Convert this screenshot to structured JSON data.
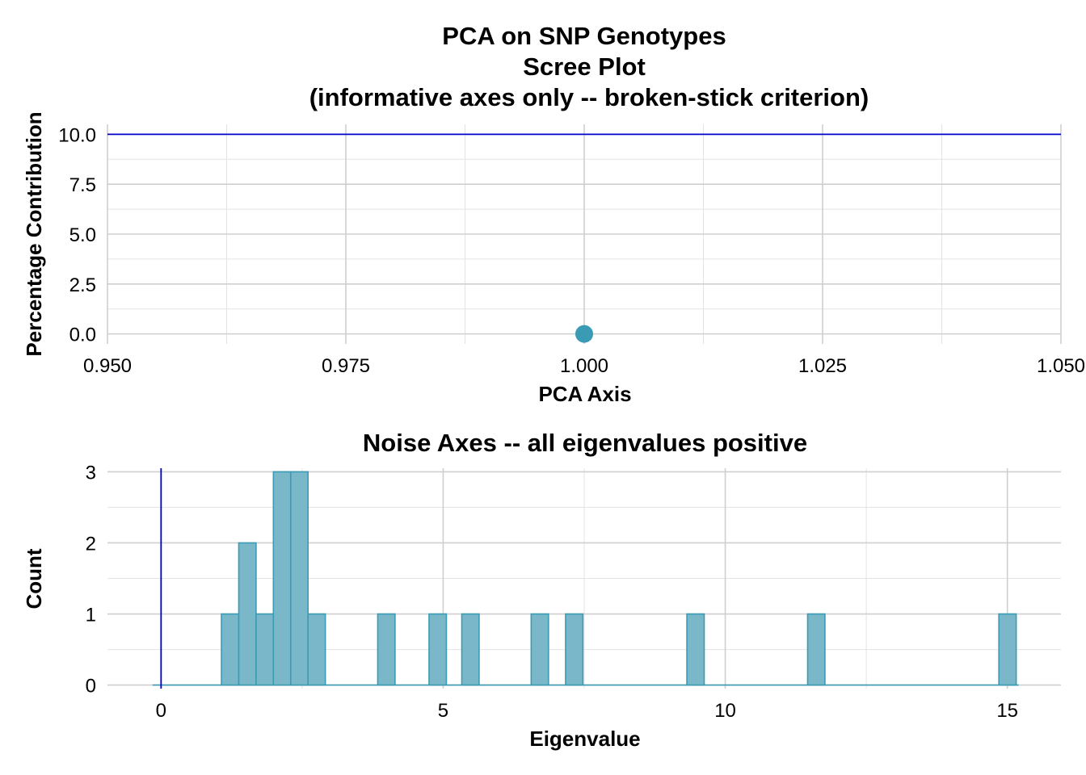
{
  "colors": {
    "point": "#3a9bb5",
    "bar_fill": "#7ab8c9",
    "bar_stroke": "#3a9bb5",
    "refline": "#0000cd"
  },
  "chart_data": [
    {
      "type": "scatter",
      "title_lines": [
        "PCA on SNP Genotypes",
        "Scree Plot",
        "(informative axes only -- broken-stick criterion)"
      ],
      "xlabel": "PCA Axis",
      "ylabel": "Percentage Contribution",
      "xlim": [
        0.95,
        1.05
      ],
      "ylim": [
        -0.5,
        10.5
      ],
      "xticks": [
        "0.950",
        "0.975",
        "1.000",
        "1.025",
        "1.050"
      ],
      "xtick_values": [
        0.95,
        0.975,
        1.0,
        1.025,
        1.05
      ],
      "yticks": [
        "0.0",
        "2.5",
        "5.0",
        "7.5",
        "10.0"
      ],
      "ytick_values": [
        0,
        2.5,
        5,
        7.5,
        10
      ],
      "points": [
        {
          "x": 1.0,
          "y": 0.0
        }
      ],
      "hline": 10.0
    },
    {
      "type": "bar",
      "subtype": "histogram",
      "title": "Noise Axes -- all eigenvalues positive",
      "xlabel": "Eigenvalue",
      "ylabel": "Count",
      "xlim": [
        -0.95,
        15.95
      ],
      "ylim": [
        -0.05,
        3.05
      ],
      "xticks": [
        "0",
        "5",
        "10",
        "15"
      ],
      "xtick_values": [
        0,
        5,
        10,
        15
      ],
      "yticks": [
        "0",
        "1",
        "2",
        "3"
      ],
      "ytick_values": [
        0,
        1,
        2,
        3
      ],
      "bin_width": 0.307,
      "bins": [
        {
          "left": 1.07,
          "count": 1
        },
        {
          "left": 1.377,
          "count": 2
        },
        {
          "left": 1.684,
          "count": 1
        },
        {
          "left": 1.991,
          "count": 3
        },
        {
          "left": 2.298,
          "count": 3
        },
        {
          "left": 2.605,
          "count": 1
        },
        {
          "left": 3.84,
          "count": 1
        },
        {
          "left": 4.75,
          "count": 1
        },
        {
          "left": 5.33,
          "count": 1
        },
        {
          "left": 6.56,
          "count": 1
        },
        {
          "left": 7.17,
          "count": 1
        },
        {
          "left": 9.32,
          "count": 1
        },
        {
          "left": 11.46,
          "count": 1
        },
        {
          "left": 14.85,
          "count": 1
        }
      ],
      "baseline_range": [
        -0.15,
        15.2
      ],
      "vline": 0
    }
  ]
}
